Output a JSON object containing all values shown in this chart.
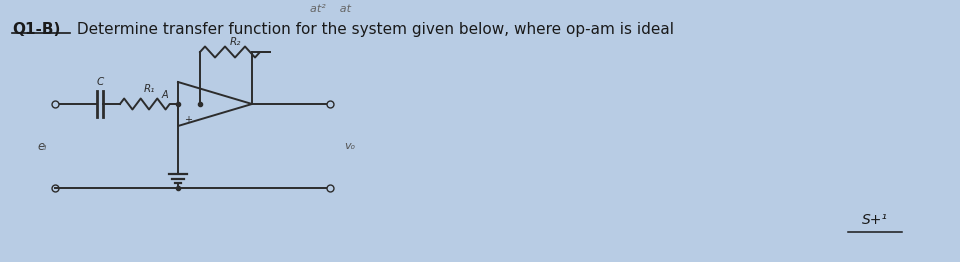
{
  "title_top": "at²    at",
  "title_main_bold": "Q1-B)",
  "title_main_rest": " Determine transfer function for the system given below, where op-am is ideal",
  "bg_color": "#b8cce4",
  "circuit_color": "#2c2c2c",
  "text_color": "#1a1a1a",
  "label_C": "C",
  "label_R1": "R₁",
  "label_R2": "R₂",
  "label_A": "A",
  "label_plus": "+",
  "label_vi": "eᵢ",
  "label_vo": "vₒ",
  "label_s_top": "S+¹",
  "figsize": [
    9.6,
    2.62
  ],
  "dpi": 100
}
